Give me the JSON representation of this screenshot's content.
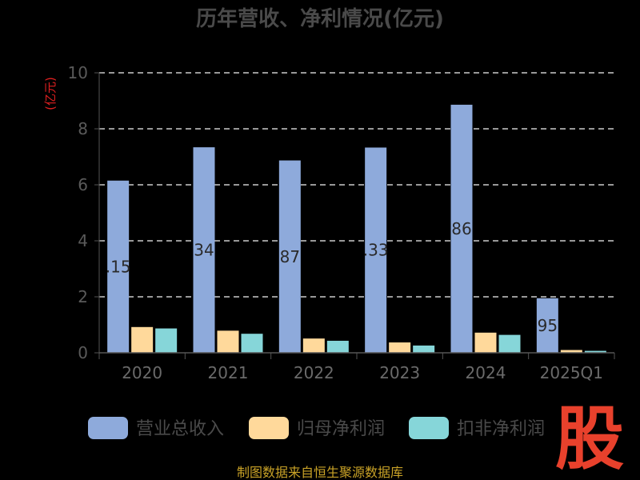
{
  "chart_data": {
    "type": "bar",
    "title": "历年营收、净利情况(亿元)",
    "ylabel": "(亿元)",
    "ylim": [
      0,
      10
    ],
    "yticks": [
      "0",
      "2",
      "4",
      "6",
      "8",
      "10"
    ],
    "categories": [
      "2020",
      "2021",
      "2022",
      "2023",
      "2024",
      "2025Q1"
    ],
    "series": [
      {
        "name": "营业总收入",
        "values": [
          6.15,
          7.34,
          6.87,
          7.33,
          8.86,
          1.95
        ],
        "color": "#8eaadb"
      },
      {
        "name": "归母净利润",
        "values": [
          0.92,
          0.79,
          0.51,
          0.37,
          0.72,
          0.1
        ],
        "color": "#ffd99b"
      },
      {
        "name": "扣非净利润",
        "values": [
          0.87,
          0.68,
          0.43,
          0.26,
          0.64,
          0.07
        ],
        "color": "#86d6d9"
      }
    ],
    "data_labels": [
      ".15",
      "34",
      "87",
      ".33",
      "86",
      "95"
    ],
    "grid": true,
    "legend": "bottom"
  },
  "footer": {
    "source": "制图数据来自恒生聚源数据库",
    "logo": "股"
  },
  "colors": {
    "background": "#000000",
    "grid": "#cccccc",
    "axis": "#555555",
    "unit": "#e02020",
    "logo": "#e8412c",
    "source": "#c9a227"
  }
}
